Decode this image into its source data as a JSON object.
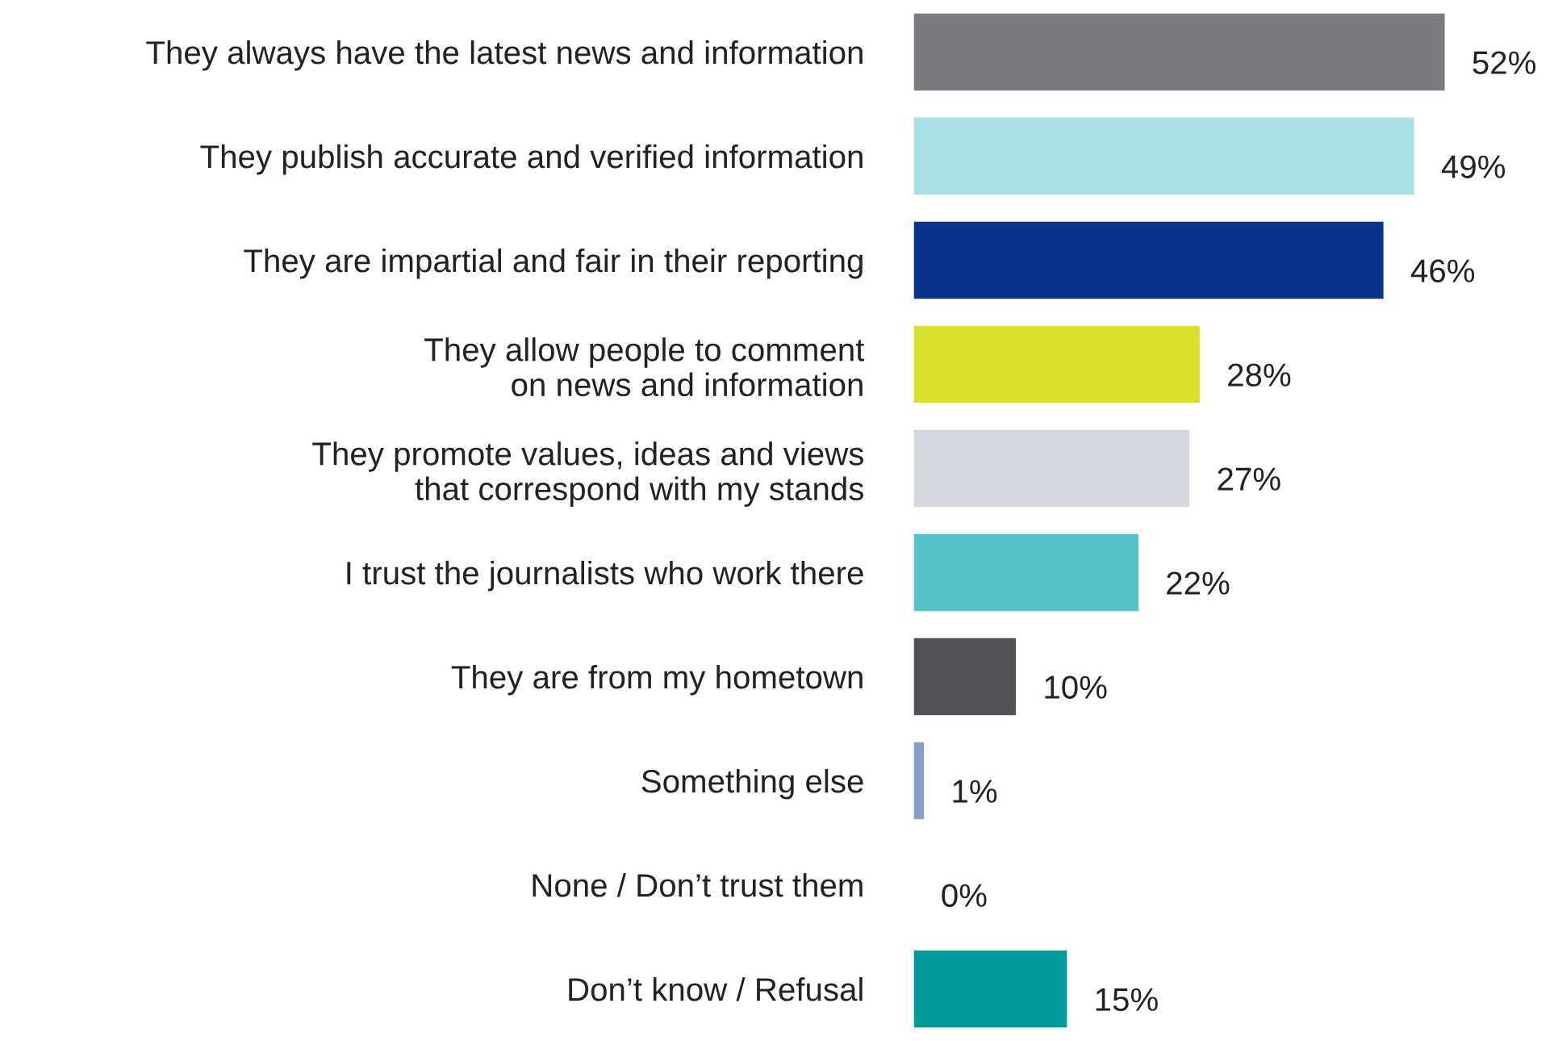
{
  "chart_data": {
    "type": "bar",
    "orientation": "horizontal",
    "categories": [
      "They always have the latest news and information",
      "They publish accurate and verified information",
      "They are impartial and fair in their reporting",
      "They allow people to comment\non news and information",
      "They promote values, ideas and views\nthat correspond with my stands",
      "I trust the journalists who work there",
      "They are from my hometown",
      "Something else",
      "None / Don’t trust them",
      "Don’t know / Refusal"
    ],
    "values": [
      52,
      49,
      46,
      28,
      27,
      22,
      10,
      1,
      0,
      15
    ],
    "colors": [
      "#7a7a80",
      "#a8e0e3",
      "#0c338c",
      "#d9e02a",
      "#d5d8e1",
      "#55c2ca",
      "#505258",
      "#8a9cc8",
      "#8a9cc8",
      "#009b9b"
    ],
    "value_labels": [
      "52%",
      "49%",
      "46%",
      "28%",
      "27%",
      "22%",
      "10%",
      "1%",
      "0%",
      "15%"
    ],
    "grid": false,
    "legend": false
  }
}
